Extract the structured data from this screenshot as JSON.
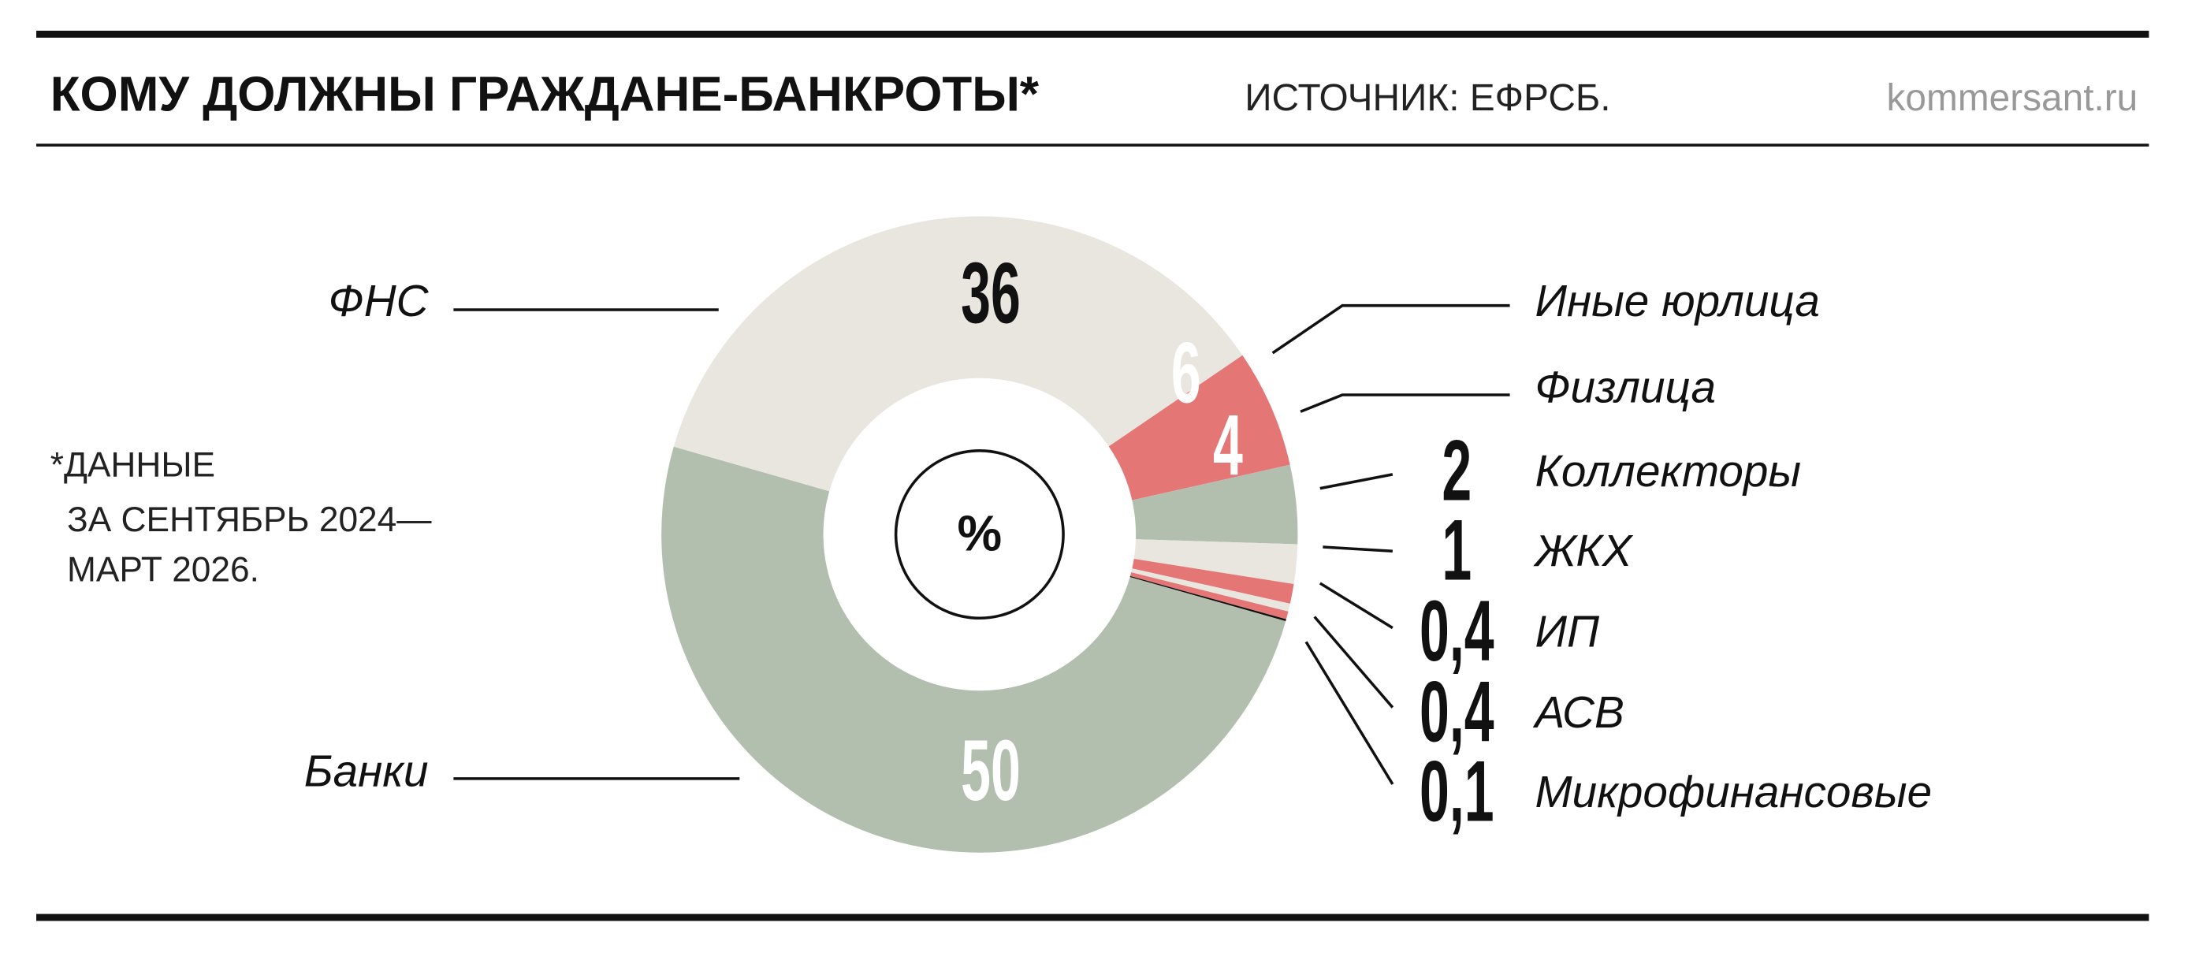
{
  "chart_data": {
    "type": "pie",
    "title": "КОМУ ДОЛЖНЫ ГРАЖДАНЕ-БАНКРОТЫ*",
    "source": "ИСТОЧНИК: ЕФРСБ.",
    "site": "kommersant.ru",
    "note": [
      "*ДАННЫЕ",
      "ЗА СЕНТЯБРЬ 2024—",
      "МАРТ 2026."
    ],
    "unit": "%",
    "categories": [
      "ФНС",
      "Иные юрлица",
      "Физлица",
      "Коллекторы",
      "ЖКХ",
      "ИП",
      "АСВ",
      "Микрофинансовые",
      "Банки"
    ],
    "values": [
      36,
      6,
      4,
      2,
      1,
      0.4,
      0.4,
      0.1,
      50
    ],
    "value_labels": [
      "36",
      "6",
      "4",
      "2",
      "1",
      "0,4",
      "0,4",
      "0,1",
      "50"
    ],
    "colors": [
      "#e8e6df",
      "#e57676",
      "#b3bfae",
      "#e8e6df",
      "#e57676",
      "#e8e6df",
      "#e57676",
      "#111111",
      "#b3bfae"
    ]
  }
}
